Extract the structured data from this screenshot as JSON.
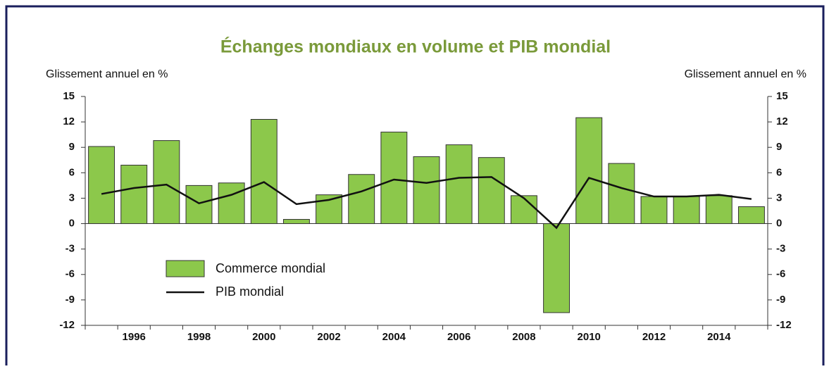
{
  "chart_data": {
    "type": "bar_line",
    "title": "Échanges mondiaux en volume et PIB mondial",
    "ylabel": "Glissement annuel en %",
    "y2label": "Glissement annuel en %",
    "categories": [
      null,
      "1996",
      null,
      "1998",
      null,
      "2000",
      null,
      "2002",
      null,
      "2004",
      null,
      "2006",
      null,
      "2008",
      null,
      "2010",
      null,
      "2012",
      null,
      "2014",
      null
    ],
    "series": [
      {
        "name": "Commerce mondial",
        "color": "#8cc84b",
        "values": [
          9.1,
          6.9,
          9.8,
          4.5,
          4.8,
          12.3,
          0.5,
          3.4,
          5.8,
          10.8,
          7.9,
          9.3,
          7.8,
          3.3,
          -10.5,
          12.5,
          7.1,
          3.2,
          3.2,
          3.3,
          2.0
        ]
      },
      {
        "name": "PIB mondial",
        "color": "#111111",
        "values": [
          3.5,
          4.2,
          4.6,
          2.4,
          3.4,
          4.9,
          2.3,
          2.8,
          3.8,
          5.2,
          4.8,
          5.4,
          5.5,
          3.0,
          -0.5,
          5.4,
          4.2,
          3.2,
          3.2,
          3.4,
          2.9
        ]
      }
    ],
    "ylim": [
      -12,
      15
    ],
    "yticks": [
      -12,
      -9,
      -6,
      -3,
      0,
      3,
      6,
      9,
      12,
      15
    ],
    "y2lim": [
      -12,
      15
    ],
    "y2ticks": [
      -12,
      -9,
      -6,
      -3,
      0,
      3,
      6,
      9,
      12,
      15
    ]
  }
}
